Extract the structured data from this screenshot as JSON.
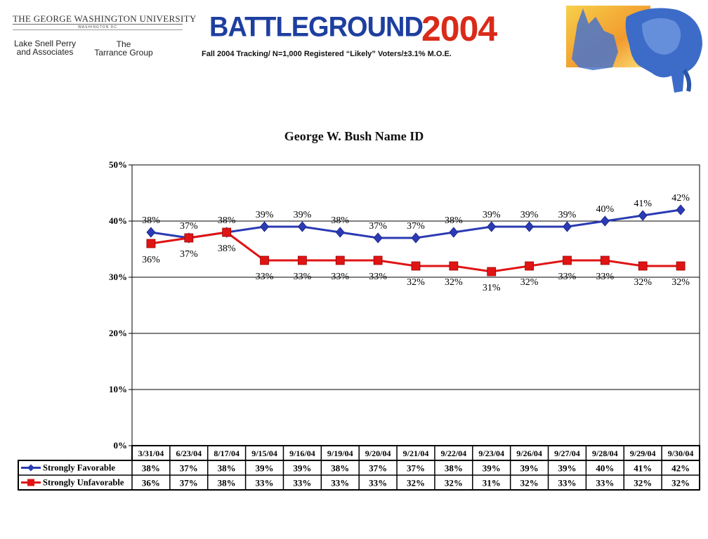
{
  "header": {
    "university": "THE GEORGE WASHINGTON UNIVERSITY",
    "university_sub": "WASHINGTON DC",
    "firm1": [
      "Lake Snell Perry",
      "and Associates"
    ],
    "firm2": [
      "The",
      "Tarrance Group"
    ],
    "brand_word": "BATTLEGROUND",
    "brand_year": "2004",
    "subtitle": "Fall 2004 Tracking/ N=1,000 Registered “Likely” Voters/±3.1% M.O.E."
  },
  "colors": {
    "favorable": "#2b3bb3",
    "unfavorable": "#e01414",
    "brand_blue": "#1e3fa0",
    "brand_red": "#d92a1a"
  },
  "icons": {
    "mascot": "donkey-elephant-icon"
  },
  "chart_data": {
    "type": "line",
    "title": "George W. Bush Name ID",
    "categories": [
      "3/31/04",
      "6/23/04",
      "8/17/04",
      "9/15/04",
      "9/16/04",
      "9/19/04",
      "9/20/04",
      "9/21/04",
      "9/22/04",
      "9/23/04",
      "9/26/04",
      "9/27/04",
      "9/28/04",
      "9/29/04",
      "9/30/04"
    ],
    "yticks": [
      "0%",
      "10%",
      "20%",
      "30%",
      "40%",
      "50%"
    ],
    "ylim": [
      0,
      50
    ],
    "grid": true,
    "legend": "data-table-below",
    "series": [
      {
        "name": "Strongly Favorable",
        "values": [
          38,
          37,
          38,
          39,
          39,
          38,
          37,
          37,
          38,
          39,
          39,
          39,
          40,
          41,
          42
        ],
        "labels": [
          "38%",
          "37%",
          "38%",
          "39%",
          "39%",
          "38%",
          "37%",
          "37%",
          "38%",
          "39%",
          "39%",
          "39%",
          "40%",
          "41%",
          "42%"
        ]
      },
      {
        "name": "Strongly Unfavorable",
        "values": [
          36,
          37,
          38,
          33,
          33,
          33,
          33,
          32,
          32,
          31,
          32,
          33,
          33,
          32,
          32
        ],
        "labels": [
          "36%",
          "37%",
          "38%",
          "33%",
          "33%",
          "33%",
          "33%",
          "32%",
          "32%",
          "31%",
          "32%",
          "33%",
          "33%",
          "32%",
          "32%"
        ]
      }
    ]
  }
}
